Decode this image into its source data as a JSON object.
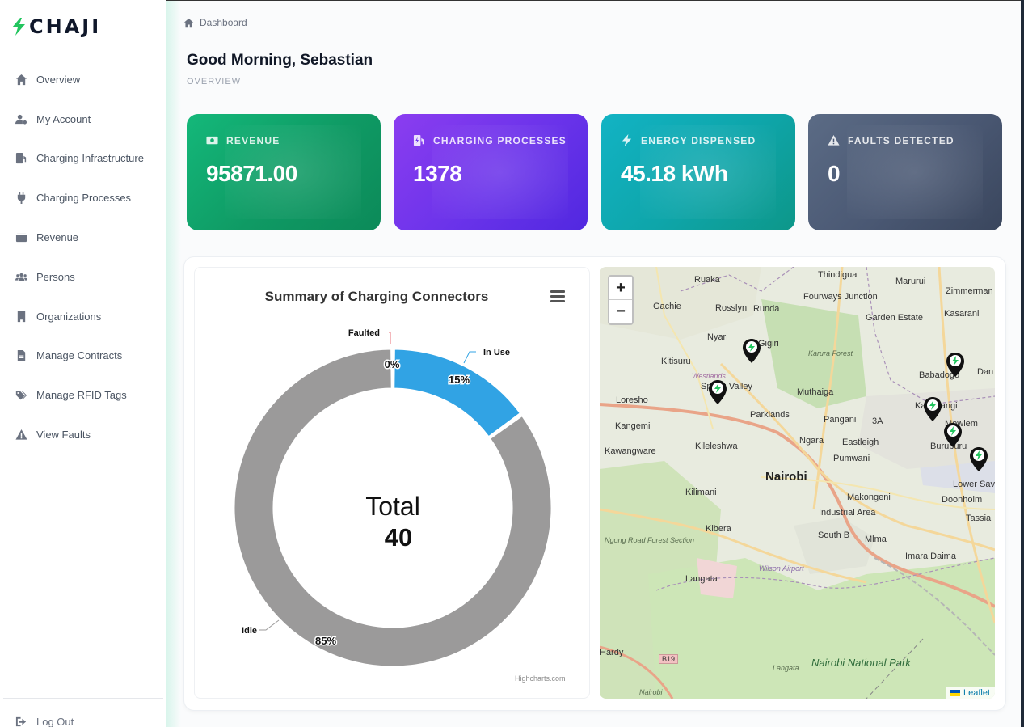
{
  "brand": {
    "name": "CHAJI",
    "accent": "#22c55e"
  },
  "sidebar": {
    "items": [
      {
        "label": "Overview",
        "icon": "home-icon"
      },
      {
        "label": "My Account",
        "icon": "user-cog-icon"
      },
      {
        "label": "Charging Infrastructure",
        "icon": "gas-pump-icon"
      },
      {
        "label": "Charging Processes",
        "icon": "plug-icon"
      },
      {
        "label": "Revenue",
        "icon": "wallet-icon"
      },
      {
        "label": "Persons",
        "icon": "users-icon"
      },
      {
        "label": "Organizations",
        "icon": "building-icon"
      },
      {
        "label": "Manage Contracts",
        "icon": "file-icon"
      },
      {
        "label": "Manage RFID Tags",
        "icon": "tags-icon"
      },
      {
        "label": "View Faults",
        "icon": "warning-icon"
      }
    ],
    "logout": "Log Out"
  },
  "header": {
    "breadcrumb": "Dashboard",
    "greeting": "Good Morning, Sebastian",
    "subtitle": "OVERVIEW"
  },
  "cards": {
    "revenue": {
      "label": "REVENUE",
      "value": "95871.00",
      "icon": "money-icon",
      "color": "#10b070"
    },
    "processes": {
      "label": "CHARGING PROCESSES",
      "value": "1378",
      "icon": "charging-station-icon",
      "color": "#6d35ec"
    },
    "energy": {
      "label": "ENERGY DISPENSED",
      "value": "45.18 kWh",
      "icon": "bolt-icon",
      "color": "#0ea5b0"
    },
    "faults": {
      "label": "FAULTS DETECTED",
      "value": "0",
      "icon": "warning-icon",
      "color": "#4a5873"
    }
  },
  "chart": {
    "title": "Summary of Charging Connectors",
    "center_label": "Total",
    "center_value": "40",
    "credit": "Highcharts.com"
  },
  "chart_data": {
    "type": "pie",
    "title": "Summary of Charging Connectors",
    "series": [
      {
        "name": "Faulted",
        "value": 0,
        "percent_label": "0%",
        "color": "#e8707a"
      },
      {
        "name": "In Use",
        "value": 15,
        "percent_label": "15%",
        "color": "#31a3e4"
      },
      {
        "name": "Idle",
        "value": 85,
        "percent_label": "85%",
        "color": "#9b9a9a"
      }
    ],
    "total": 40
  },
  "map": {
    "zoom_in": "+",
    "zoom_out": "−",
    "attribution": "Leaflet",
    "labels": [
      "Ruaka",
      "Thindigua",
      "Marurui",
      "Zimmerman",
      "Gachie",
      "Rosslyn",
      "Runda",
      "Fourways Junction",
      "Kasarani",
      "Garden Estate",
      "Nyari",
      "Gigiri",
      "Karura Forest",
      "Kitisuru",
      "Westlands",
      "Babadogo",
      "Dan",
      "Loresho",
      "Spring Valley",
      "Muthaiga",
      "Kangemi",
      "Parklands",
      "Pangani",
      "3A",
      "Kariobangi",
      "Mowlem",
      "Kawangware",
      "Kileleshwa",
      "Ngara",
      "Eastleigh",
      "Buruburu",
      "Pumwani",
      "Nairobi",
      "Kilimani",
      "Makongeni",
      "Lower Sav",
      "Doonholm",
      "Industrial Area",
      "Tassia",
      "Kibera",
      "South B",
      "Mlma",
      "Ngong Road Forest Section",
      "Imara Daima",
      "Langata",
      "Wilson Airport",
      "Hardy",
      "B19",
      "Langata",
      "Nairobi National Park",
      "Nairobi"
    ]
  }
}
